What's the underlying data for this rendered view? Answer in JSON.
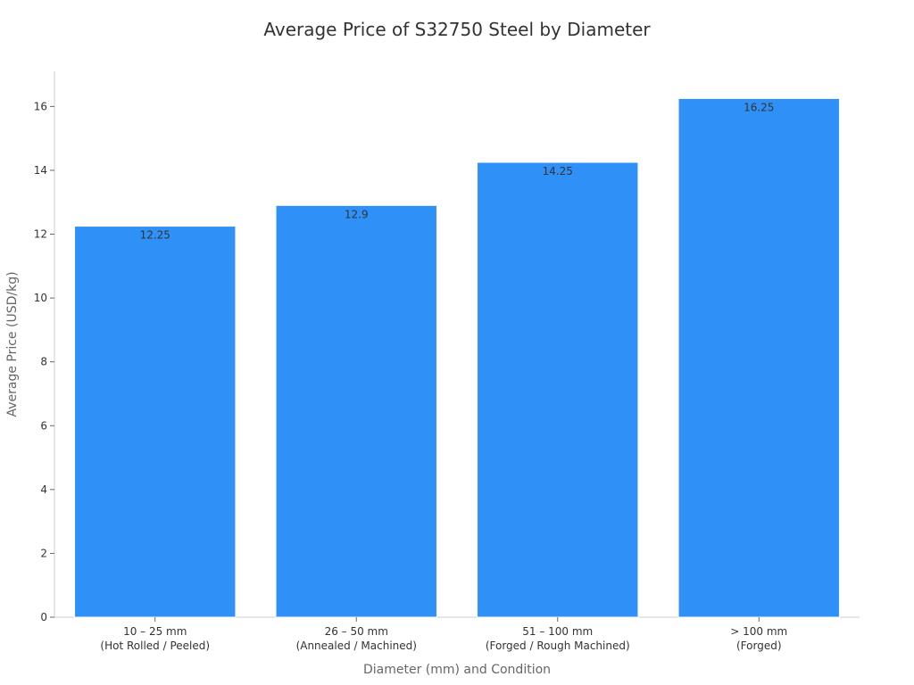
{
  "chart_data": {
    "type": "bar",
    "title": "Average Price of S32750 Steel by Diameter",
    "xlabel": "Diameter (mm) and Condition",
    "ylabel": "Average Price (USD/kg)",
    "categories": [
      [
        "10 – 25 mm",
        "(Hot Rolled / Peeled)"
      ],
      [
        "26 – 50 mm",
        "(Annealed / Machined)"
      ],
      [
        "51 – 100 mm",
        "(Forged / Rough Machined)"
      ],
      [
        "> 100 mm",
        "(Forged)"
      ]
    ],
    "values": [
      12.25,
      12.9,
      14.25,
      16.25
    ],
    "data_labels": [
      "12.25",
      "12.9",
      "14.25",
      "16.25"
    ],
    "ylim": [
      0,
      17.1
    ],
    "yticks": [
      0,
      2,
      4,
      6,
      8,
      10,
      12,
      14,
      16
    ],
    "grid": false,
    "bar_color": "#2f91f7"
  }
}
